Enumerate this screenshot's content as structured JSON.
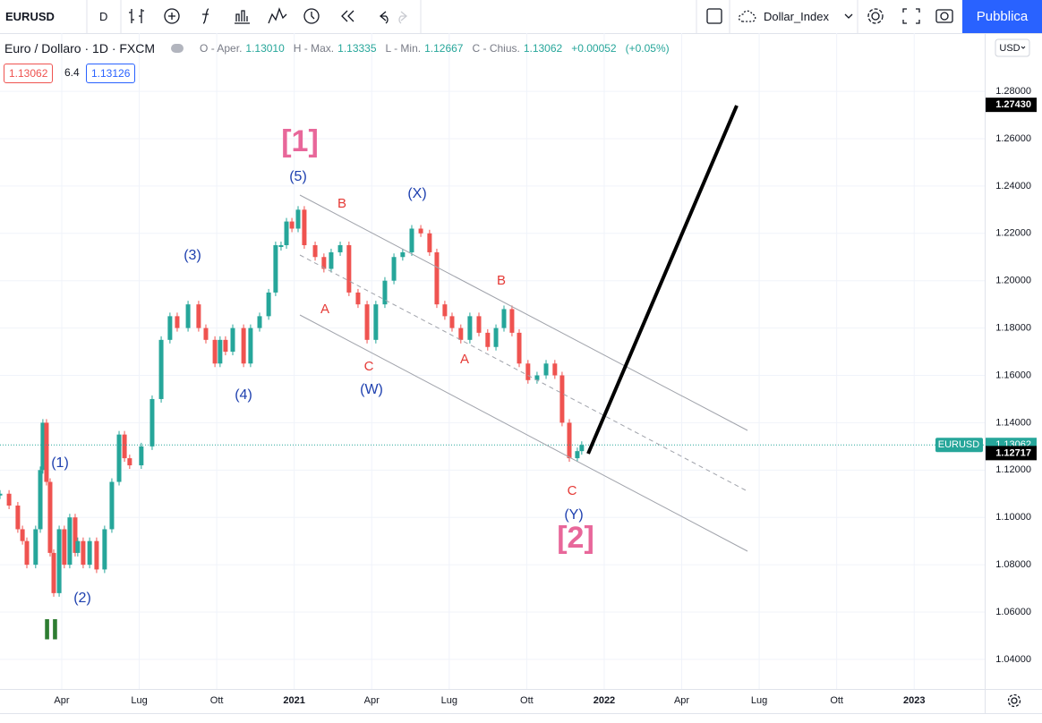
{
  "toolbar": {
    "symbol": "EURUSD",
    "interval": "D",
    "compare": "Dollar_Index",
    "publish": "Pubblica"
  },
  "legend": {
    "title": "Euro / Dollaro · 1D · FXCM",
    "items": [
      {
        "label": "O - Aper.",
        "value": "1.13010"
      },
      {
        "label": "H - Max.",
        "value": "1.13335"
      },
      {
        "label": "L - Min.",
        "value": "1.12667"
      },
      {
        "label": "C - Chius.",
        "value": "1.13062"
      }
    ],
    "change": "+0.00052",
    "change_pct": "(+0.05%)",
    "bid": "1.13062",
    "spread": "6.4",
    "ask": "1.13126"
  },
  "currency": "USD",
  "chart_data": {
    "type": "candlestick",
    "x": [
      0.61,
      0.96,
      1.3,
      1.48,
      1.65,
      1.99,
      2.17,
      2.27,
      2.41,
      2.55,
      2.69,
      2.9,
      3.1,
      3.31,
      3.52,
      3.62,
      3.83,
      4.08,
      4.35,
      4.66,
      4.94,
      5.22,
      5.43,
      5.63,
      6.08,
      6.5,
      6.85,
      7.19,
      7.47,
      7.89,
      8.3,
      8.58,
      8.93,
      9.13,
      9.34,
      9.62,
      10.04,
      10.31,
      10.66,
      11.01,
      11.28,
      11.49,
      11.7,
      11.91,
      12.15,
      12.39,
      12.81,
      13.15,
      13.43,
      13.78,
      14.12,
      14.47,
      14.82,
      15.16,
      15.51,
      15.86,
      16.2,
      16.55,
      16.9,
      17.24,
      17.52,
      17.83,
      18.11,
      18.45,
      18.8,
      19.15,
      19.49,
      19.81,
      20.12,
      20.43,
      20.71,
      21.05,
      21.4,
      21.75,
      22.09,
      22.37,
      22.65,
      22.96,
      23.13
    ],
    "values": [
      1.11,
      1.105,
      1.095,
      1.09,
      1.08,
      1.095,
      1.12,
      1.14,
      1.115,
      1.085,
      1.068,
      1.095,
      1.08,
      1.1,
      1.085,
      1.09,
      1.08,
      1.09,
      1.078,
      1.095,
      1.115,
      1.135,
      1.125,
      1.122,
      1.13,
      1.15,
      1.175,
      1.185,
      1.18,
      1.19,
      1.18,
      1.175,
      1.165,
      1.175,
      1.17,
      1.18,
      1.165,
      1.18,
      1.185,
      1.195,
      1.215,
      1.215,
      1.225,
      1.222,
      1.23,
      1.215,
      1.21,
      1.205,
      1.212,
      1.215,
      1.195,
      1.19,
      1.175,
      1.19,
      1.2,
      1.21,
      1.212,
      1.222,
      1.22,
      1.212,
      1.19,
      1.185,
      1.18,
      1.175,
      1.185,
      1.178,
      1.172,
      1.18,
      1.188,
      1.178,
      1.165,
      1.158,
      1.16,
      1.165,
      1.16,
      1.14,
      1.125,
      1.128,
      1.13062
    ],
    "up_color": "#26a69a",
    "down_color": "#ef5350",
    "xlim": [
      0.61,
      38.73
    ],
    "ylim": [
      1.0275,
      1.3046
    ],
    "xticks": [
      {
        "value": 3,
        "label": "Apr"
      },
      {
        "value": 6,
        "label": "Lug"
      },
      {
        "value": 9,
        "label": "Ott"
      },
      {
        "value": 12,
        "label": "2021"
      },
      {
        "value": 15,
        "label": "Apr"
      },
      {
        "value": 18,
        "label": "Lug"
      },
      {
        "value": 21,
        "label": "Ott"
      },
      {
        "value": 24,
        "label": "2022"
      },
      {
        "value": 27,
        "label": "Apr"
      },
      {
        "value": 30,
        "label": "Lug"
      },
      {
        "value": 33,
        "label": "Ott"
      },
      {
        "value": 36,
        "label": "2023"
      }
    ],
    "yticks": [
      {
        "value": 1.28,
        "label": "1.28000"
      },
      {
        "value": 1.26,
        "label": "1.26000"
      },
      {
        "value": 1.24,
        "label": "1.24000"
      },
      {
        "value": 1.22,
        "label": "1.22000"
      },
      {
        "value": 1.2,
        "label": "1.20000"
      },
      {
        "value": 1.18,
        "label": "1.18000"
      },
      {
        "value": 1.16,
        "label": "1.16000"
      },
      {
        "value": 1.14,
        "label": "1.14000"
      },
      {
        "value": 1.12,
        "label": "1.12000"
      },
      {
        "value": 1.1,
        "label": "1.10000"
      },
      {
        "value": 1.08,
        "label": "1.08000"
      },
      {
        "value": 1.06,
        "label": "1.06000"
      },
      {
        "value": 1.04,
        "label": "1.04000"
      }
    ],
    "grid": true,
    "price_labels": [
      {
        "value": 1.2743,
        "label": "1.27430"
      },
      {
        "value": 1.12717,
        "label": "1.12717"
      }
    ],
    "last_price": {
      "name": "EURUSD",
      "value": 1.13062,
      "label": "1.13062"
    },
    "annotations": [
      {
        "text": "(1)",
        "color": "#1e40af"
      },
      {
        "text": "(2)",
        "color": "#1e40af"
      },
      {
        "text": "(3)",
        "color": "#1e40af"
      },
      {
        "text": "(4)",
        "color": "#1e40af"
      },
      {
        "text": "(5)",
        "color": "#1e40af"
      },
      {
        "text": "(X)",
        "color": "#1e40af"
      },
      {
        "text": "(W)",
        "color": "#1e40af"
      },
      {
        "text": "(Y)",
        "color": "#1e40af"
      },
      {
        "text": "B",
        "color": "#e53935"
      },
      {
        "text": "A",
        "color": "#e53935"
      },
      {
        "text": "C",
        "color": "#e53935"
      },
      {
        "text": "B",
        "color": "#e53935"
      },
      {
        "text": "A",
        "color": "#e53935"
      },
      {
        "text": "C",
        "color": "#e53935"
      },
      {
        "text": "[1]",
        "color": "#e8679a"
      },
      {
        "text": "[2]",
        "color": "#e8679a"
      },
      {
        "text": "II",
        "color": "#2e7d32"
      }
    ]
  }
}
